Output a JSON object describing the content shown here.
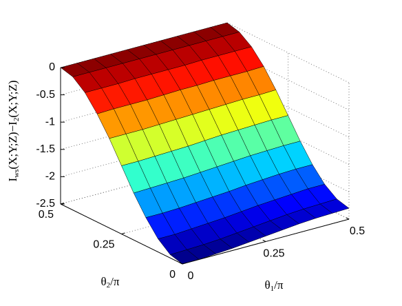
{
  "chart_data": {
    "type": "surface",
    "xlabel": [
      "θ",
      "1",
      "/π"
    ],
    "ylabel": [
      "θ",
      "2",
      "/π"
    ],
    "zlabel": [
      "I",
      "ws",
      "(X;Y;Z)−I",
      "2",
      "(X;Y;Z)"
    ],
    "x": [
      0,
      0.05,
      0.1,
      0.15,
      0.2,
      0.25,
      0.3,
      0.35,
      0.4,
      0.45,
      0.5
    ],
    "y": [
      0,
      0.05,
      0.1,
      0.15,
      0.2,
      0.25,
      0.3,
      0.35,
      0.4,
      0.45,
      0.5
    ],
    "z": [
      [
        -2.5,
        -2.5,
        -2.48,
        -2.46,
        -2.43,
        -2.4,
        -2.37,
        -2.34,
        -2.32,
        -2.31,
        -2.3
      ],
      [
        -2.44,
        -2.43,
        -2.42,
        -2.4,
        -2.37,
        -2.34,
        -2.31,
        -2.28,
        -2.26,
        -2.25,
        -2.24
      ],
      [
        -2.26,
        -2.26,
        -2.24,
        -2.22,
        -2.2,
        -2.17,
        -2.14,
        -2.12,
        -2.1,
        -2.08,
        -2.08
      ],
      [
        -1.98,
        -1.98,
        -1.97,
        -1.95,
        -1.93,
        -1.91,
        -1.88,
        -1.86,
        -1.84,
        -1.83,
        -1.83
      ],
      [
        -1.64,
        -1.63,
        -1.62,
        -1.61,
        -1.59,
        -1.57,
        -1.55,
        -1.53,
        -1.52,
        -1.51,
        -1.51
      ],
      [
        -1.25,
        -1.25,
        -1.24,
        -1.23,
        -1.22,
        -1.2,
        -1.18,
        -1.17,
        -1.16,
        -1.15,
        -1.15
      ],
      [
        -0.86,
        -0.86,
        -0.86,
        -0.85,
        -0.84,
        -0.83,
        -0.82,
        -0.81,
        -0.8,
        -0.8,
        -0.79
      ],
      [
        -0.52,
        -0.51,
        -0.51,
        -0.51,
        -0.5,
        -0.49,
        -0.49,
        -0.48,
        -0.48,
        -0.48,
        -0.47
      ],
      [
        -0.24,
        -0.24,
        -0.24,
        -0.23,
        -0.23,
        -0.23,
        -0.23,
        -0.22,
        -0.22,
        -0.22,
        -0.22
      ],
      [
        -0.06,
        -0.06,
        -0.06,
        -0.06,
        -0.06,
        -0.06,
        -0.06,
        -0.06,
        -0.06,
        -0.06,
        -0.06
      ],
      [
        0,
        0,
        0,
        0,
        0,
        0,
        0,
        0,
        0,
        0,
        0
      ]
    ],
    "xlim": [
      0,
      0.5
    ],
    "ylim": [
      0,
      0.5
    ],
    "zlim": [
      -2.5,
      0
    ],
    "xticks": [
      0,
      0.25,
      0.5
    ],
    "yticks": [
      0,
      0.25,
      0.5
    ],
    "zticks": [
      -2.5,
      -2,
      -1.5,
      -1,
      -0.5,
      0
    ],
    "colormap": "jet",
    "grid": true
  }
}
